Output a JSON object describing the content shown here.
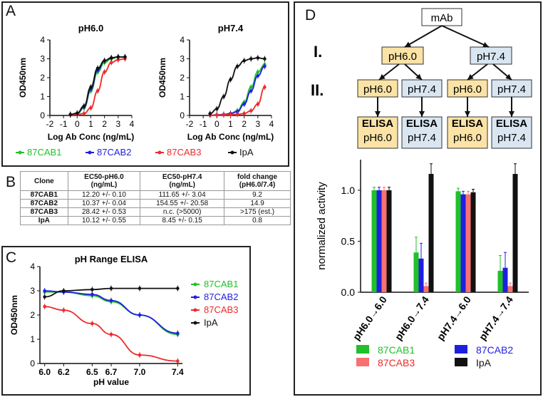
{
  "panels": {
    "a": "A",
    "b": "B",
    "c": "C",
    "d": "D"
  },
  "colors": {
    "cab1": "#22c02a",
    "cab2": "#1f1fe0",
    "cab3": "#ee2a2a",
    "ipa": "#111111"
  },
  "legend": [
    "87CAB1",
    "87CAB2",
    "87CAB3",
    "IpA"
  ],
  "chart_data": [
    {
      "id": "A1",
      "type": "line",
      "title": "pH6.0",
      "xlabel": "Log Ab Conc (ng/mL)",
      "ylabel": "OD450nm",
      "xlim": [
        -2,
        4
      ],
      "ylim": [
        0,
        4
      ],
      "xticks": [
        "-2",
        "-1",
        "0",
        "1",
        "2",
        "3",
        "4"
      ],
      "yticks": [
        "0",
        "1",
        "2",
        "3",
        "4"
      ],
      "x": [
        -0.5,
        0,
        0.5,
        1,
        1.5,
        2,
        2.5,
        3,
        3.5
      ],
      "series": [
        {
          "name": "87CAB1",
          "values": [
            0.05,
            0.1,
            0.4,
            1.3,
            2.3,
            2.8,
            3.0,
            3.1,
            3.1
          ]
        },
        {
          "name": "87CAB2",
          "values": [
            0.05,
            0.12,
            0.45,
            1.4,
            2.4,
            2.9,
            3.05,
            3.1,
            3.1
          ]
        },
        {
          "name": "87CAB3",
          "values": [
            0.03,
            0.05,
            0.1,
            0.4,
            1.3,
            2.3,
            2.8,
            2.95,
            3.0
          ]
        },
        {
          "name": "IpA",
          "values": [
            0.05,
            0.12,
            0.5,
            1.5,
            2.5,
            2.9,
            3.05,
            3.1,
            3.1
          ]
        }
      ]
    },
    {
      "id": "A2",
      "type": "line",
      "title": "pH7.4",
      "xlabel": "Log Ab Conc (ng/mL)",
      "ylabel": "OD450nm",
      "xlim": [
        -2,
        4
      ],
      "ylim": [
        0,
        4
      ],
      "xticks": [
        "-2",
        "-1",
        "0",
        "1",
        "2",
        "3",
        "4"
      ],
      "yticks": [
        "0",
        "1",
        "2",
        "3",
        "4"
      ],
      "x": [
        -0.5,
        0,
        0.5,
        1,
        1.5,
        2,
        2.5,
        3,
        3.5
      ],
      "series": [
        {
          "name": "87CAB1",
          "values": [
            0.02,
            0.03,
            0.05,
            0.1,
            0.25,
            0.7,
            1.5,
            2.3,
            2.7
          ]
        },
        {
          "name": "87CAB2",
          "values": [
            0.02,
            0.03,
            0.05,
            0.1,
            0.2,
            0.6,
            1.3,
            2.1,
            2.6
          ]
        },
        {
          "name": "87CAB3",
          "values": [
            0.02,
            0.02,
            0.03,
            0.04,
            0.06,
            0.1,
            0.25,
            0.6,
            1.5
          ]
        },
        {
          "name": "IpA",
          "values": [
            0.1,
            0.35,
            1.0,
            1.9,
            2.6,
            2.9,
            3.0,
            3.05,
            3.0
          ]
        }
      ]
    },
    {
      "id": "C",
      "type": "line",
      "title": "pH Range ELISA",
      "xlabel": "pH value",
      "ylabel": "OD450nm",
      "xlim": [
        5.95,
        7.45
      ],
      "ylim": [
        0,
        4
      ],
      "xticks": [
        "6.0",
        "6.2",
        "6.5",
        "6.7",
        "7.0",
        "7.4"
      ],
      "yticks": [
        "0",
        "1",
        "2",
        "3",
        "4"
      ],
      "x": [
        6.0,
        6.2,
        6.5,
        6.7,
        7.0,
        7.4
      ],
      "series": [
        {
          "name": "87CAB1",
          "values": [
            2.95,
            2.95,
            2.8,
            2.55,
            2.0,
            1.2
          ]
        },
        {
          "name": "87CAB2",
          "values": [
            3.0,
            2.95,
            2.85,
            2.6,
            2.0,
            1.25
          ]
        },
        {
          "name": "87CAB3",
          "values": [
            2.35,
            2.2,
            1.65,
            1.2,
            0.35,
            0.1
          ]
        },
        {
          "name": "IpA",
          "values": [
            2.75,
            3.0,
            3.05,
            3.1,
            3.1,
            3.1
          ]
        }
      ]
    },
    {
      "id": "D",
      "type": "bar",
      "ylabel": "normalized activity",
      "ylim": [
        0,
        1.3
      ],
      "yticks": [
        "0.0",
        "0.5",
        "1.0"
      ],
      "categories": [
        "pH6.0→6.0",
        "pH6.0→7.4",
        "pH7.4→6.0",
        "pH7.4→7.4"
      ],
      "series": [
        {
          "name": "87CAB1",
          "values": [
            1.0,
            0.39,
            0.99,
            0.21
          ]
        },
        {
          "name": "87CAB2",
          "values": [
            1.0,
            0.33,
            0.96,
            0.24
          ]
        },
        {
          "name": "87CAB3",
          "values": [
            1.0,
            0.06,
            0.96,
            0.06
          ]
        },
        {
          "name": "IpA",
          "values": [
            1.0,
            1.16,
            0.98,
            1.16
          ]
        }
      ]
    }
  ],
  "table": {
    "headers": [
      "Clone",
      "EC50-pH6.0\n(ng/mL)",
      "EC50-pH7.4\n(ng/mL)",
      "fold change\n(pH6.0/7.4)"
    ],
    "rows": [
      [
        "87CAB1",
        "12.20 +/- 0.10",
        "111.65 +/- 3.04",
        "9.2"
      ],
      [
        "87CAB2",
        "10.37 +/- 0.04",
        "154.55 +/- 20.58",
        "14.9"
      ],
      [
        "87CAB3",
        "28.42 +/- 0.53",
        "n.c. (>5000)",
        ">175 (est.)"
      ],
      [
        "IpA",
        "10.12 +/- 0.55",
        "8.45 +/- 0.15",
        "0.8"
      ]
    ]
  },
  "tree": {
    "root": "mAb",
    "level1": "I.",
    "level2": "II.",
    "l1": [
      "pH6.0",
      "pH7.4"
    ],
    "l2": [
      "pH6.0",
      "pH7.4",
      "pH6.0",
      "pH7.4"
    ],
    "elisa": "ELISA",
    "elisa_ph": [
      "pH6.0",
      "pH7.4",
      "pH6.0",
      "pH7.4"
    ]
  }
}
